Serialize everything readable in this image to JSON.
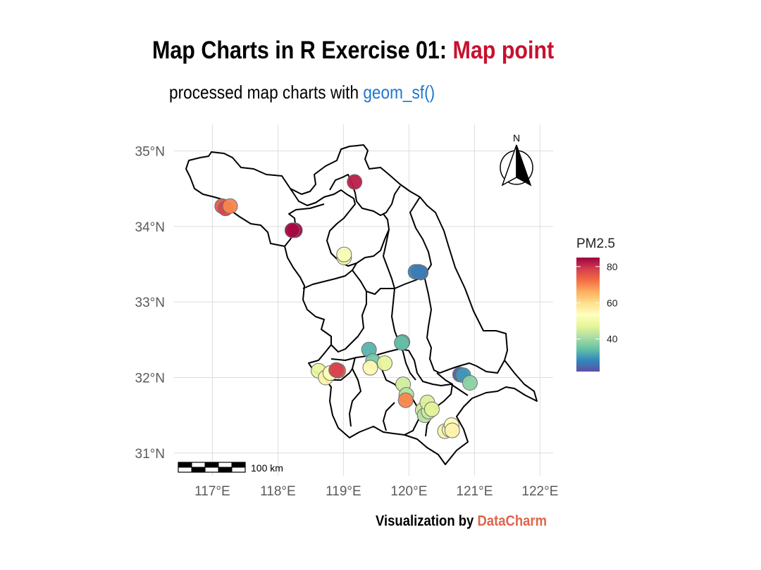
{
  "title": {
    "main": "Map Charts in R Exercise 01: ",
    "highlight": "Map point",
    "highlight_color": "#C8102E"
  },
  "subtitle": {
    "main": "processed map charts with ",
    "highlight": "geom_sf()",
    "highlight_color": "#1F77D0"
  },
  "caption": {
    "main": "Visualization by ",
    "highlight": "DataCharm",
    "highlight_color": "#E0654A"
  },
  "map": {
    "region": "Jiangsu Province, China",
    "lon_range": [
      116.2,
      122.2
    ],
    "lat_range": [
      30.7,
      35.35
    ],
    "lon_ticks": [
      {
        "value": 117,
        "label": "117°E"
      },
      {
        "value": 118,
        "label": "118°E"
      },
      {
        "value": 119,
        "label": "119°E"
      },
      {
        "value": 120,
        "label": "120°E"
      },
      {
        "value": 121,
        "label": "121°E"
      },
      {
        "value": 122,
        "label": "122°E"
      }
    ],
    "lat_ticks": [
      {
        "value": 35,
        "label": "35°N"
      },
      {
        "value": 34,
        "label": "34°N"
      },
      {
        "value": 33,
        "label": "33°N"
      },
      {
        "value": 32,
        "label": "32°N"
      },
      {
        "value": 31,
        "label": "31°N"
      }
    ],
    "north_arrow_label": "N",
    "scale_bar_label": "100 km"
  },
  "chart_data": {
    "type": "scatter",
    "title": "Map Charts in R Exercise 01: Map point",
    "xlabel": "",
    "ylabel": "",
    "xlim": [
      116.2,
      122.2
    ],
    "ylim": [
      30.7,
      35.35
    ],
    "color_variable": "PM2.5",
    "color_range": [
      22,
      85
    ],
    "legend": {
      "title": "PM2.5",
      "ticks": [
        40,
        60,
        80
      ],
      "position": "right"
    },
    "points": [
      {
        "lon": 119.17,
        "lat": 34.59,
        "pm25": 82
      },
      {
        "lon": 117.15,
        "lat": 34.27,
        "pm25": 75
      },
      {
        "lon": 117.2,
        "lat": 34.24,
        "pm25": 78
      },
      {
        "lon": 117.27,
        "lat": 34.27,
        "pm25": 70
      },
      {
        "lon": 118.26,
        "lat": 33.95,
        "pm25": 85
      },
      {
        "lon": 118.22,
        "lat": 33.95,
        "pm25": 84
      },
      {
        "lon": 119.01,
        "lat": 33.59,
        "pm25": 50
      },
      {
        "lon": 119.01,
        "lat": 33.63,
        "pm25": 52
      },
      {
        "lon": 120.1,
        "lat": 33.4,
        "pm25": 28
      },
      {
        "lon": 120.18,
        "lat": 33.39,
        "pm25": 26
      },
      {
        "lon": 120.15,
        "lat": 33.4,
        "pm25": 27
      },
      {
        "lon": 119.9,
        "lat": 32.47,
        "pm25": 38
      },
      {
        "lon": 119.89,
        "lat": 32.46,
        "pm25": 34
      },
      {
        "lon": 119.39,
        "lat": 32.37,
        "pm25": 33
      },
      {
        "lon": 119.45,
        "lat": 32.22,
        "pm25": 36
      },
      {
        "lon": 119.41,
        "lat": 32.13,
        "pm25": 55
      },
      {
        "lon": 119.63,
        "lat": 32.19,
        "pm25": 48
      },
      {
        "lon": 118.62,
        "lat": 32.09,
        "pm25": 48
      },
      {
        "lon": 118.73,
        "lat": 32.0,
        "pm25": 56
      },
      {
        "lon": 118.8,
        "lat": 32.06,
        "pm25": 52
      },
      {
        "lon": 118.92,
        "lat": 32.09,
        "pm25": 75
      },
      {
        "lon": 118.89,
        "lat": 32.1,
        "pm25": 78
      },
      {
        "lon": 119.91,
        "lat": 31.91,
        "pm25": 45
      },
      {
        "lon": 119.96,
        "lat": 31.77,
        "pm25": 42
      },
      {
        "lon": 119.95,
        "lat": 31.7,
        "pm25": 70
      },
      {
        "lon": 120.21,
        "lat": 31.57,
        "pm25": 45
      },
      {
        "lon": 120.24,
        "lat": 31.5,
        "pm25": 42
      },
      {
        "lon": 120.3,
        "lat": 31.55,
        "pm25": 44
      },
      {
        "lon": 120.28,
        "lat": 31.67,
        "pm25": 46
      },
      {
        "lon": 120.35,
        "lat": 31.58,
        "pm25": 47
      },
      {
        "lon": 120.55,
        "lat": 31.29,
        "pm25": 50
      },
      {
        "lon": 120.62,
        "lat": 31.31,
        "pm25": 52
      },
      {
        "lon": 120.65,
        "lat": 31.37,
        "pm25": 54
      },
      {
        "lon": 120.66,
        "lat": 31.3,
        "pm25": 56
      },
      {
        "lon": 120.78,
        "lat": 32.04,
        "pm25": 24
      },
      {
        "lon": 120.83,
        "lat": 32.03,
        "pm25": 30
      },
      {
        "lon": 120.93,
        "lat": 31.93,
        "pm25": 38
      }
    ]
  }
}
